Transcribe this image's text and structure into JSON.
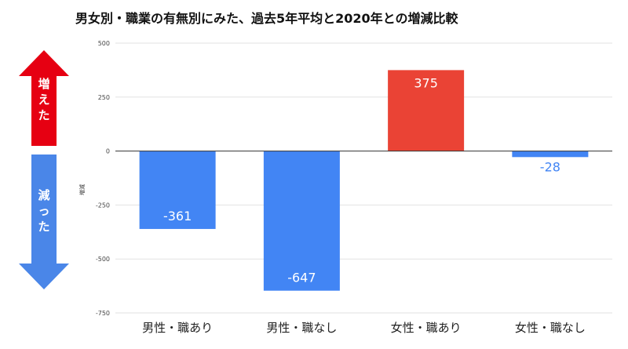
{
  "chart_data": {
    "type": "bar",
    "title": "男女別・職業の有無別にみた、過去5年平均と2020年との増減比較",
    "ylabel": "増減",
    "xlabel": "",
    "categories": [
      "男性・職あり",
      "男性・職なし",
      "女性・職あり",
      "女性・職なし"
    ],
    "values": [
      -361,
      -647,
      375,
      -28
    ],
    "data_labels": [
      "-361",
      "-647",
      "375",
      "-28"
    ],
    "bar_colors": [
      "#4285f4",
      "#4285f4",
      "#ea4335",
      "#4285f4"
    ],
    "ylim": [
      -750,
      500
    ],
    "yticks": [
      500,
      250,
      0,
      -250,
      -500,
      -750
    ],
    "ytick_labels": [
      "500",
      "250",
      "0",
      "-250",
      "-500",
      "-750"
    ],
    "grid": true,
    "legend": "none"
  },
  "annotations": {
    "up_arrow": {
      "text": "増えた",
      "color": "#e60012"
    },
    "down_arrow": {
      "text": "減った",
      "color": "#4a86e8"
    }
  }
}
